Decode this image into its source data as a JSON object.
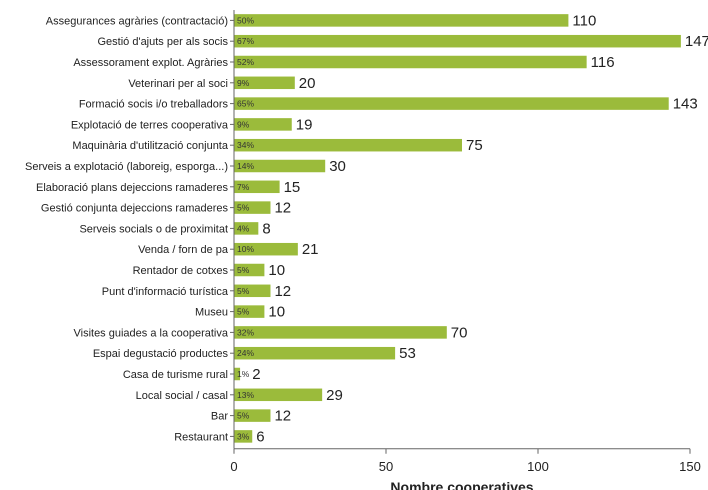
{
  "chart_data": {
    "type": "bar",
    "orientation": "horizontal",
    "xlabel": "Nombre cooperatives",
    "ylabel": "",
    "xlim": [
      0,
      150
    ],
    "xticks": [
      0,
      50,
      100,
      150
    ],
    "grid": false,
    "bar_color": "#9bbb3b",
    "categories": [
      "Assegurances agràries (contractació)",
      "Gestió d'ajuts per als socis",
      "Assessorament explot. Agràries",
      "Veterinari per al soci",
      "Formació socis i/o treballadors",
      "Explotació de terres cooperativa",
      "Maquinària d'utilització conjunta",
      "Serveis a explotació (laboreig, esporga...)",
      "Elaboració plans dejeccions ramaderes",
      "Gestió conjunta dejeccions ramaderes",
      "Serveis socials o de proximitat",
      "Venda / forn de pa",
      "Rentador de cotxes",
      "Punt d'informació turística",
      "Museu",
      "Visites guiades a la cooperativa",
      "Espai degustació productes",
      "Casa de turisme rural",
      "Local social / casal",
      "Bar",
      "Restaurant"
    ],
    "values": [
      110,
      147,
      116,
      20,
      143,
      19,
      75,
      30,
      15,
      12,
      8,
      21,
      10,
      12,
      10,
      70,
      53,
      2,
      29,
      12,
      6
    ],
    "percent_labels": [
      "50%",
      "67%",
      "52%",
      "9%",
      "65%",
      "9%",
      "34%",
      "14%",
      "7%",
      "5%",
      "4%",
      "10%",
      "5%",
      "5%",
      "5%",
      "32%",
      "24%",
      "1%",
      "13%",
      "5%",
      "3%"
    ]
  }
}
